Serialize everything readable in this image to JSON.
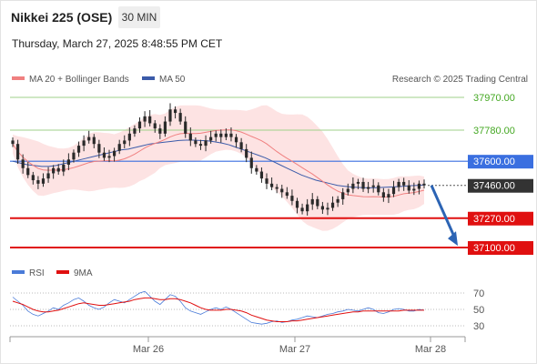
{
  "header": {
    "title": "Nikkei 225 (OSE)",
    "interval": "30 MIN",
    "datetime": "Thursday, March 27, 2025 8:48:55 PM CET"
  },
  "legend": {
    "ma20_label": "MA 20 + Bollinger Bands",
    "ma50_label": "MA 50",
    "credit": "Research © 2025 Trading Central",
    "rsi_label": "RSI",
    "rsi9_label": "9MA"
  },
  "colors": {
    "ma20": "#f08080",
    "bollinger_fill": "#fde3e3",
    "ma50": "#3b5ba9",
    "candle": "#2a2a2a",
    "resistance_green": "#44a822",
    "resistance_light": "#9fd28a",
    "pivot_blue": "#3a6fe0",
    "support_red": "#e01010",
    "current_box": "#333333",
    "arrow": "#2c64b4",
    "rsi": "#4a7bd8",
    "rsi9": "#e01010"
  },
  "chart_data": [
    {
      "type": "line",
      "subtype": "candlestick",
      "title": "Nikkei 225 (OSE)",
      "x_ticks": [
        "Mar 26",
        "Mar 27",
        "Mar 28"
      ],
      "ylim": [
        37050,
        38000
      ],
      "levels": [
        {
          "value": 37970,
          "label": "37970.00",
          "style": "light-green"
        },
        {
          "value": 37780,
          "label": "37780.00",
          "style": "light-green"
        },
        {
          "value": 37600,
          "label": "37600.00",
          "style": "blue-box"
        },
        {
          "value": 37460,
          "label": "37460.00",
          "style": "current-box"
        },
        {
          "value": 37270,
          "label": "37270.00",
          "style": "red-box"
        },
        {
          "value": 37100,
          "label": "37100.00",
          "style": "red-box"
        }
      ],
      "close_series": [
        37700,
        37610,
        37560,
        37520,
        37490,
        37470,
        37500,
        37530,
        37560,
        37540,
        37580,
        37610,
        37650,
        37690,
        37720,
        37740,
        37700,
        37650,
        37620,
        37630,
        37660,
        37700,
        37720,
        37760,
        37790,
        37830,
        37860,
        37820,
        37790,
        37760,
        37830,
        37900,
        37880,
        37830,
        37760,
        37720,
        37700,
        37690,
        37720,
        37740,
        37760,
        37740,
        37760,
        37740,
        37710,
        37670,
        37620,
        37560,
        37540,
        37500,
        37470,
        37450,
        37440,
        37420,
        37400,
        37370,
        37330,
        37310,
        37350,
        37380,
        37340,
        37320,
        37330,
        37360,
        37380,
        37420,
        37440,
        37470,
        37480,
        37440,
        37450,
        37460,
        37420,
        37390,
        37410,
        37450,
        37480,
        37460,
        37430,
        37440,
        37470,
        37460
      ],
      "ma50_series": [
        37600,
        37590,
        37580,
        37575,
        37570,
        37570,
        37575,
        37585,
        37595,
        37605,
        37615,
        37625,
        37635,
        37645,
        37655,
        37665,
        37670,
        37680,
        37690,
        37700,
        37705,
        37710,
        37715,
        37720,
        37722,
        37722,
        37720,
        37718,
        37712,
        37705,
        37695,
        37680,
        37665,
        37650,
        37635,
        37620,
        37600,
        37580,
        37560,
        37540,
        37520,
        37505,
        37490,
        37480,
        37470,
        37460,
        37455,
        37450,
        37448,
        37446,
        37446,
        37448,
        37450,
        37452,
        37455,
        37458,
        37460,
        37462
      ],
      "rsi": {
        "levels": [
          70,
          50,
          30
        ],
        "ylim": [
          20,
          80
        ],
        "rsi_values": [
          65,
          60,
          55,
          48,
          44,
          42,
          45,
          48,
          52,
          50,
          55,
          58,
          62,
          64,
          60,
          55,
          52,
          50,
          53,
          58,
          62,
          60,
          58,
          62,
          66,
          70,
          72,
          66,
          60,
          56,
          62,
          68,
          66,
          60,
          52,
          48,
          46,
          44,
          47,
          50,
          52,
          50,
          53,
          50,
          46,
          42,
          38,
          34,
          33,
          32,
          33,
          35,
          36,
          34,
          35,
          37,
          38,
          40,
          42,
          41,
          40,
          42,
          44,
          45,
          47,
          48,
          50,
          49,
          48,
          50,
          52,
          50,
          46,
          45,
          47,
          50,
          51,
          50,
          48,
          48,
          50,
          49
        ],
        "rsi9_values": [
          60,
          58,
          56,
          53,
          50,
          48,
          47,
          47,
          48,
          49,
          51,
          53,
          55,
          57,
          58,
          57,
          56,
          55,
          55,
          56,
          57,
          58,
          59,
          60,
          62,
          63,
          64,
          64,
          63,
          62,
          62,
          63,
          63,
          62,
          60,
          58,
          55,
          52,
          50,
          49,
          49,
          49,
          50,
          50,
          49,
          48,
          46,
          43,
          41,
          39,
          37,
          36,
          35,
          35,
          35,
          36,
          36,
          37,
          38,
          39,
          40,
          41,
          42,
          43,
          44,
          45,
          46,
          47,
          47,
          48,
          48,
          48,
          48,
          48,
          48,
          48,
          48,
          49,
          49,
          49,
          49,
          49
        ]
      }
    }
  ]
}
